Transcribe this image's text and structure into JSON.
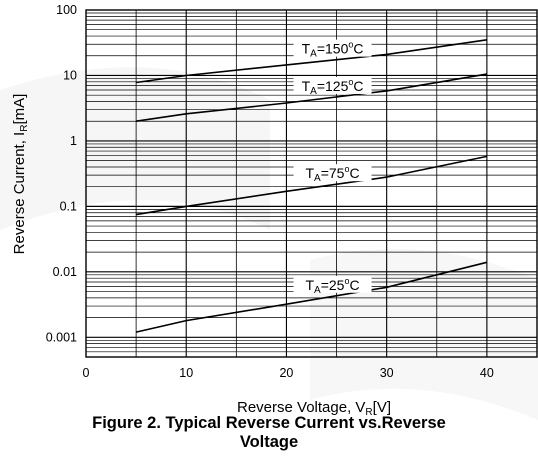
{
  "caption": {
    "line1": "Figure 2. Typical Reverse Current vs.Reverse",
    "line2": "Voltage"
  },
  "chart_data": {
    "type": "line",
    "title": "",
    "xlabel": {
      "main": "Reverse Voltage, V",
      "sub": "R",
      "unit": "[V]"
    },
    "ylabel": {
      "main": "Reverse Current, I",
      "sub": "R",
      "unit": "[mA]"
    },
    "xlim": [
      0,
      45
    ],
    "ylim": [
      0.0005,
      100
    ],
    "yscale": "log",
    "grid": true,
    "legend": "none",
    "x_ticks": [
      0,
      10,
      20,
      30,
      40
    ],
    "x_tick_labels": [
      "0",
      "10",
      "20",
      "30",
      "40"
    ],
    "y_ticks": [
      0.001,
      0.01,
      0.1,
      1,
      10,
      100
    ],
    "y_tick_labels": [
      "0.001",
      "0.01",
      "0.1",
      "1",
      "10",
      "100"
    ],
    "line_color": "#000000",
    "series": [
      {
        "name": "TA=150°C",
        "label_main": "T",
        "label_sub": "A",
        "label_rest": "=150",
        "label_deg": "o",
        "label_unit": "C",
        "x": [
          5,
          10,
          20,
          30,
          40
        ],
        "y": [
          7.8,
          10,
          14.5,
          21,
          35
        ]
      },
      {
        "name": "TA=125°C",
        "label_main": "T",
        "label_sub": "A",
        "label_rest": "=125",
        "label_deg": "o",
        "label_unit": "C",
        "x": [
          5,
          10,
          20,
          30,
          40
        ],
        "y": [
          2,
          2.6,
          3.8,
          5.8,
          10.5
        ]
      },
      {
        "name": "TA=75°C",
        "label_main": "T",
        "label_sub": "A",
        "label_rest": "=75",
        "label_deg": "o",
        "label_unit": "C",
        "x": [
          5,
          10,
          20,
          30,
          40
        ],
        "y": [
          0.075,
          0.1,
          0.17,
          0.28,
          0.58
        ]
      },
      {
        "name": "TA=25°C",
        "label_main": "T",
        "label_sub": "A",
        "label_rest": "=25",
        "label_deg": "o",
        "label_unit": "C",
        "x": [
          5,
          10,
          20,
          30,
          40
        ],
        "y": [
          0.0012,
          0.0018,
          0.0032,
          0.0058,
          0.014
        ]
      }
    ]
  }
}
